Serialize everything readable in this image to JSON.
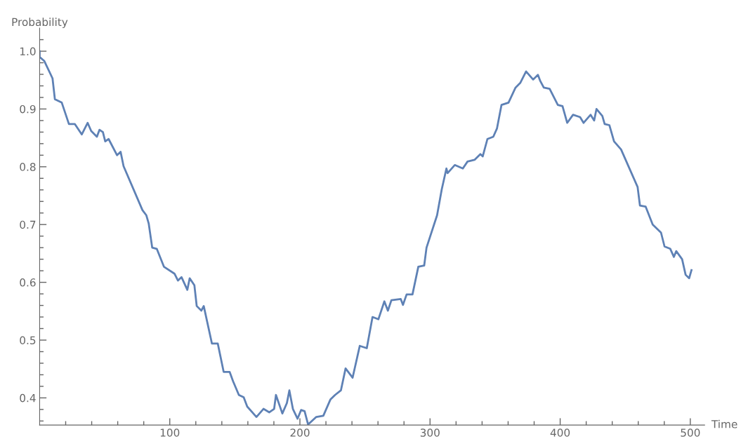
{
  "chart_data": {
    "type": "line",
    "xlabel": "Time",
    "ylabel": "Probability",
    "xlim": [
      0,
      511
    ],
    "ylim": [
      0.353,
      1.04
    ],
    "xticks": [
      {
        "value": 20,
        "label": null
      },
      {
        "value": 40,
        "label": null
      },
      {
        "value": 60,
        "label": null
      },
      {
        "value": 80,
        "label": null
      },
      100,
      {
        "value": 120,
        "label": null
      },
      {
        "value": 140,
        "label": null
      },
      {
        "value": 160,
        "label": null
      },
      {
        "value": 180,
        "label": null
      },
      200,
      {
        "value": 220,
        "label": null
      },
      {
        "value": 240,
        "label": null
      },
      {
        "value": 260,
        "label": null
      },
      {
        "value": 280,
        "label": null
      },
      300,
      {
        "value": 320,
        "label": null
      },
      {
        "value": 340,
        "label": null
      },
      {
        "value": 360,
        "label": null
      },
      {
        "value": 380,
        "label": null
      },
      400,
      {
        "value": 420,
        "label": null
      },
      {
        "value": 440,
        "label": null
      },
      {
        "value": 460,
        "label": null
      },
      {
        "value": 480,
        "label": null
      },
      500
    ],
    "yticks": [
      {
        "value": 0.36,
        "label": null
      },
      {
        "value": 0.38,
        "label": null
      },
      0.4,
      {
        "value": 0.42,
        "label": null
      },
      {
        "value": 0.44,
        "label": null
      },
      {
        "value": 0.46,
        "label": null
      },
      {
        "value": 0.48,
        "label": null
      },
      0.5,
      {
        "value": 0.52,
        "label": null
      },
      {
        "value": 0.54,
        "label": null
      },
      {
        "value": 0.56,
        "label": null
      },
      {
        "value": 0.58,
        "label": null
      },
      0.6,
      {
        "value": 0.62,
        "label": null
      },
      {
        "value": 0.64,
        "label": null
      },
      {
        "value": 0.66,
        "label": null
      },
      {
        "value": 0.68,
        "label": null
      },
      0.7,
      {
        "value": 0.72,
        "label": null
      },
      {
        "value": 0.74,
        "label": null
      },
      {
        "value": 0.76,
        "label": null
      },
      {
        "value": 0.78,
        "label": null
      },
      0.8,
      {
        "value": 0.82,
        "label": null
      },
      {
        "value": 0.84,
        "label": null
      },
      {
        "value": 0.86,
        "label": null
      },
      {
        "value": 0.88,
        "label": null
      },
      0.9,
      {
        "value": 0.92,
        "label": null
      },
      {
        "value": 0.94,
        "label": null
      },
      {
        "value": 0.96,
        "label": null
      },
      {
        "value": 0.98,
        "label": null
      },
      {
        "value": 1.0,
        "label": "1.0"
      },
      {
        "value": 1.02,
        "label": null
      }
    ],
    "grid": false,
    "legend": false,
    "marker": "none",
    "line_style": "solid",
    "series": [
      {
        "color": "#5e81b5",
        "x": [
          0,
          0,
          3.6,
          9.9,
          11.7,
          17,
          22.5,
          27,
          32.4,
          36.9,
          39.6,
          44,
          46,
          48.6,
          50.4,
          53,
          59.5,
          62.2,
          64.5,
          79,
          82,
          83.8,
          86.5,
          90,
          95.5,
          103.6,
          106.3,
          109,
          113.5,
          115.3,
          118.9,
          120.7,
          124.3,
          126.1,
          132.4,
          136.9,
          141.4,
          146,
          148.6,
          153.1,
          156.8,
          159.5,
          166.6,
          172,
          176.5,
          180.2,
          181.6,
          186.5,
          190,
          191.9,
          194.6,
          198.2,
          200.9,
          203.6,
          206.3,
          212.6,
          218,
          223.4,
          227,
          231.5,
          235.1,
          240.5,
          246,
          251.4,
          255.8,
          260.3,
          264.9,
          267.6,
          270.3,
          277.5,
          279.2,
          282,
          286.5,
          291,
          295.5,
          297.3,
          305.4,
          309,
          312.6,
          313.5,
          319,
          325.2,
          328.8,
          334.2,
          338.7,
          340.5,
          344.1,
          348.6,
          351.4,
          354.9,
          360.3,
          365.7,
          369.3,
          373.8,
          379.2,
          382.9,
          384.6,
          387.4,
          391.9,
          398.2,
          401.8,
          405.4,
          409.9,
          415.3,
          418,
          423.4,
          426.1,
          427.9,
          432.4,
          434.2,
          437.8,
          441.4,
          446.8,
          459.5,
          461.3,
          465.7,
          471.1,
          477.5,
          480.2,
          484.6,
          487.4,
          489.2,
          493.7,
          496.4,
          499.1,
          500.9
        ],
        "values": [
          1.0,
          0.99,
          0.983,
          0.953,
          0.917,
          0.911,
          0.874,
          0.874,
          0.856,
          0.876,
          0.862,
          0.852,
          0.864,
          0.86,
          0.844,
          0.848,
          0.82,
          0.826,
          0.801,
          0.725,
          0.716,
          0.702,
          0.66,
          0.658,
          0.627,
          0.615,
          0.603,
          0.609,
          0.587,
          0.607,
          0.595,
          0.559,
          0.551,
          0.559,
          0.494,
          0.494,
          0.445,
          0.445,
          0.429,
          0.405,
          0.401,
          0.385,
          0.367,
          0.381,
          0.375,
          0.381,
          0.405,
          0.373,
          0.391,
          0.413,
          0.381,
          0.364,
          0.379,
          0.377,
          0.354,
          0.367,
          0.369,
          0.397,
          0.405,
          0.413,
          0.451,
          0.435,
          0.49,
          0.486,
          0.54,
          0.536,
          0.567,
          0.551,
          0.569,
          0.571,
          0.561,
          0.579,
          0.579,
          0.627,
          0.629,
          0.66,
          0.716,
          0.761,
          0.797,
          0.789,
          0.803,
          0.797,
          0.809,
          0.812,
          0.822,
          0.818,
          0.848,
          0.852,
          0.866,
          0.907,
          0.911,
          0.937,
          0.945,
          0.965,
          0.951,
          0.959,
          0.949,
          0.937,
          0.935,
          0.907,
          0.905,
          0.876,
          0.89,
          0.886,
          0.876,
          0.89,
          0.88,
          0.9,
          0.888,
          0.874,
          0.872,
          0.844,
          0.83,
          0.765,
          0.733,
          0.731,
          0.7,
          0.686,
          0.662,
          0.658,
          0.644,
          0.654,
          0.64,
          0.613,
          0.607,
          0.621
        ]
      }
    ]
  }
}
